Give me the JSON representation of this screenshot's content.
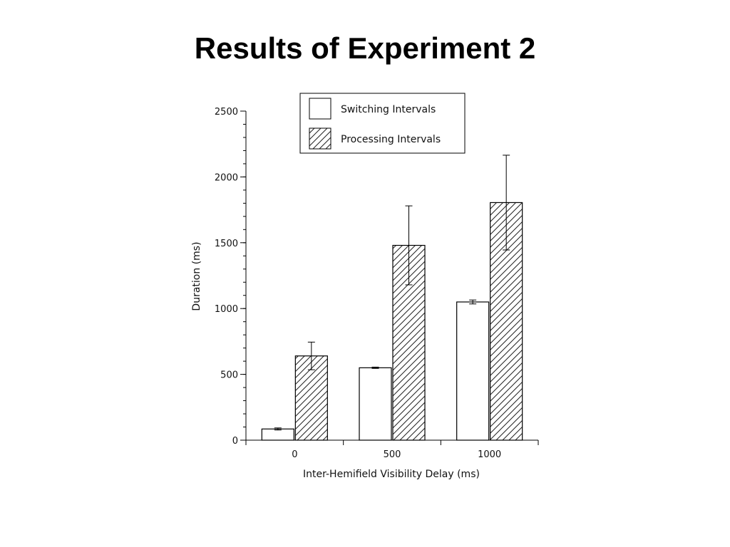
{
  "slide": {
    "title": "Results of Experiment 2"
  },
  "chart_data": {
    "type": "bar",
    "xlabel": "Inter-Hemifield Visibility Delay (ms)",
    "ylabel": "Duration (ms)",
    "categories": [
      "0",
      "500",
      "1000"
    ],
    "ylim": [
      0,
      2500
    ],
    "yticks": [
      0,
      500,
      1000,
      1500,
      2000,
      2500
    ],
    "yminor_step": 100,
    "grid": false,
    "legend_position": "top",
    "series": [
      {
        "name": "Switching Intervals",
        "fill": "plain",
        "color": "#ffffff",
        "values": [
          85,
          550,
          1050
        ],
        "errors": [
          8,
          5,
          15
        ]
      },
      {
        "name": "Processing Intervals",
        "fill": "hatched",
        "color": "#ffffff",
        "values": [
          640,
          1480,
          1805
        ],
        "errors": [
          105,
          300,
          360
        ]
      }
    ]
  }
}
